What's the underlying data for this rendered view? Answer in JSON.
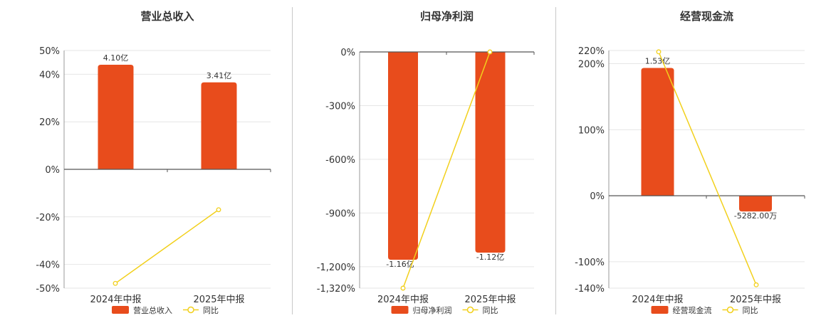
{
  "chart_data": [
    {
      "type": "bar",
      "title": "营业总收入",
      "categories": [
        "2024年中报",
        "2025年中报"
      ],
      "series": [
        {
          "name": "营业总收入",
          "type": "bar",
          "values": [
            4.1,
            3.41
          ],
          "labels": [
            "4.10亿",
            "3.41亿"
          ],
          "color": "#e84c1c"
        },
        {
          "name": "同比",
          "type": "line",
          "values": [
            -48,
            -17
          ],
          "color": "#f2d01c"
        }
      ],
      "yticks": [
        "50%",
        "40%",
        "20%",
        "0%",
        "-20%",
        "-40%",
        "-50%"
      ],
      "ylim": [
        -50,
        50
      ]
    },
    {
      "type": "bar",
      "title": "归母净利润",
      "categories": [
        "2024年中报",
        "2025年中报"
      ],
      "series": [
        {
          "name": "归母净利润",
          "type": "bar",
          "values": [
            -1.16,
            -1.12
          ],
          "labels": [
            "-1.16亿",
            "-1.12亿"
          ],
          "color": "#e84c1c"
        },
        {
          "name": "同比",
          "type": "line",
          "values": [
            -1320,
            0
          ],
          "color": "#f2d01c"
        }
      ],
      "yticks": [
        "0%",
        "-300%",
        "-600%",
        "-900%",
        "-1,200%",
        "-1,320%"
      ],
      "ylim": [
        -1320,
        0
      ]
    },
    {
      "type": "bar",
      "title": "经营现金流",
      "categories": [
        "2024年中报",
        "2025年中报"
      ],
      "series": [
        {
          "name": "经营现金流",
          "type": "bar",
          "values": [
            1.53,
            -0.5282
          ],
          "labels": [
            "1.53亿",
            "-5282.00万"
          ],
          "color": "#e84c1c"
        },
        {
          "name": "同比",
          "type": "line",
          "values": [
            218,
            -135
          ],
          "color": "#f2d01c"
        }
      ],
      "yticks": [
        "220%",
        "200%",
        "100%",
        "0%",
        "-100%",
        "-140%"
      ],
      "ylim": [
        -140,
        220
      ]
    }
  ]
}
